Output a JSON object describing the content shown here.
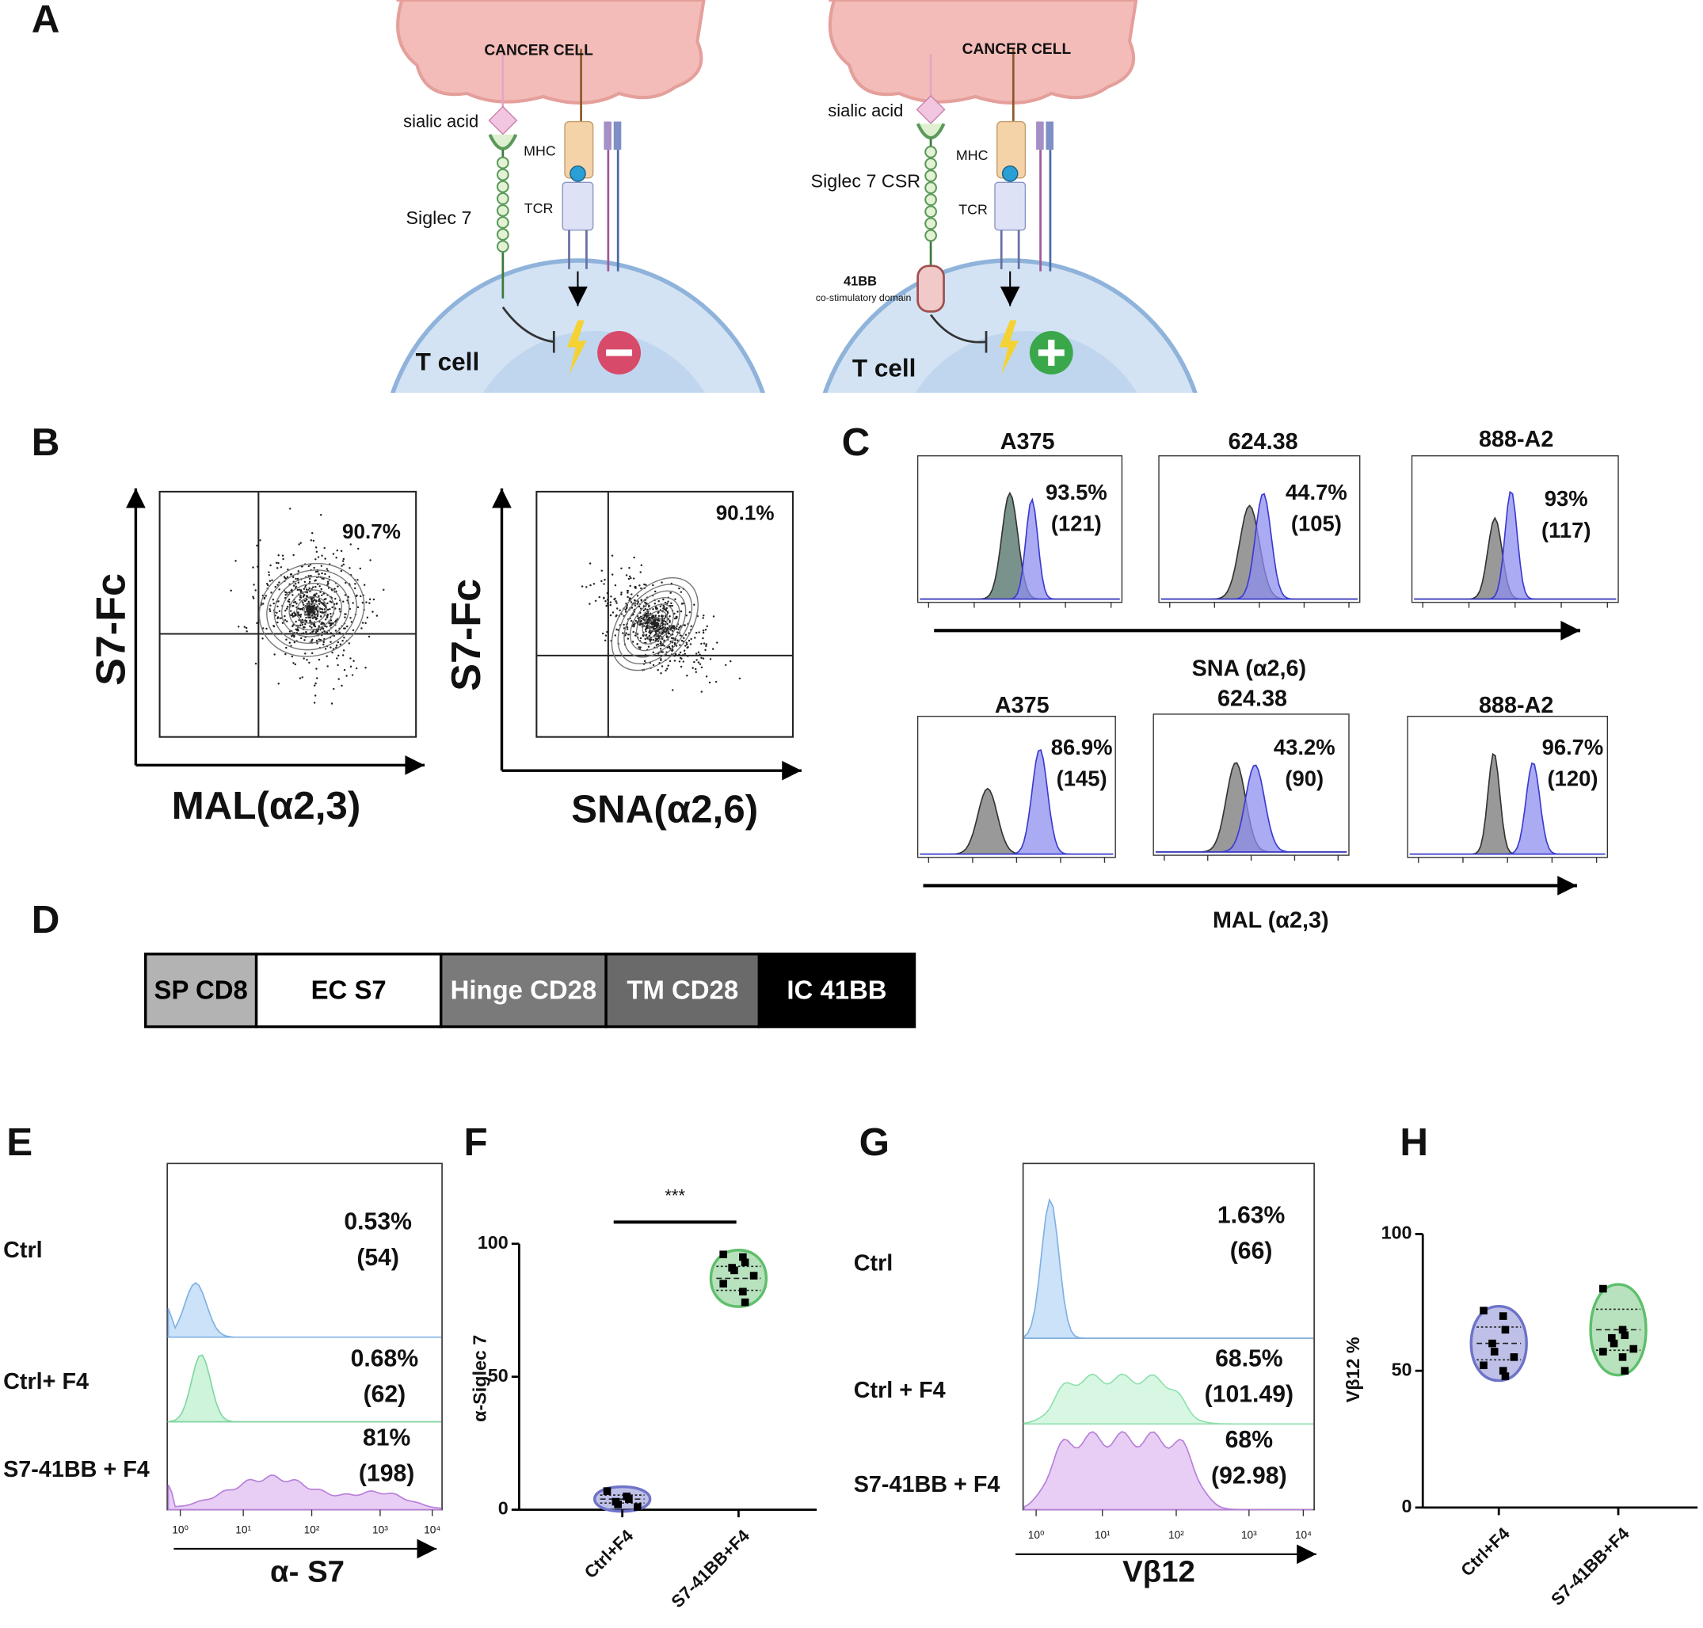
{
  "panel_a": {
    "label": "A",
    "left": {
      "cancer_cell": "CANCER CELL",
      "sialic_acid": "sialic acid",
      "mhc": "MHC",
      "tcr": "TCR",
      "receptor": "Siglec 7",
      "t_cell": "T cell"
    },
    "right": {
      "cancer_cell": "CANCER CELL",
      "sialic_acid": "sialic acid",
      "mhc": "MHC",
      "tcr": "TCR",
      "receptor": "Siglec 7 CSR",
      "costim": "41BB",
      "costim_note": "co-stimulatory domain",
      "t_cell": "T cell"
    }
  },
  "panel_b": {
    "label": "B",
    "plots": [
      {
        "y_label": "S7-Fc",
        "x_label": "MAL(α2,3)",
        "percent": "90.7%"
      },
      {
        "y_label": "S7-Fc",
        "x_label": "SNA(α2,6)",
        "percent": "90.1%"
      }
    ]
  },
  "panel_c": {
    "label": "C",
    "rows": [
      {
        "axis_label": "SNA (α2,6)",
        "plots": [
          {
            "cell_line": "A375",
            "percent": "93.5%",
            "mfi": "(121)"
          },
          {
            "cell_line": "624.38",
            "percent": "44.7%",
            "mfi": "(105)"
          },
          {
            "cell_line": "888-A2",
            "percent": "93%",
            "mfi": "(117)"
          }
        ]
      },
      {
        "axis_label": "MAL (α2,3)",
        "plots": [
          {
            "cell_line": "A375",
            "percent": "86.9%",
            "mfi": "(145)"
          },
          {
            "cell_line": "624.38",
            "percent": "43.2%",
            "mfi": "(90)"
          },
          {
            "cell_line": "888-A2",
            "percent": "96.7%",
            "mfi": "(120)"
          }
        ]
      }
    ]
  },
  "panel_d": {
    "label": "D",
    "segments": [
      "SP CD8",
      "EC S7",
      "Hinge CD28",
      "TM CD28",
      "IC 41BB"
    ]
  },
  "panel_e": {
    "label": "E",
    "x_label": "α- S7",
    "xticks": [
      "10⁰",
      "10¹",
      "10²",
      "10³",
      "10⁴"
    ],
    "rows": [
      {
        "name": "Ctrl",
        "percent": "0.53%",
        "mfi": "(54)"
      },
      {
        "name": "Ctrl+ F4",
        "percent": "0.68%",
        "mfi": "(62)"
      },
      {
        "name": "S7-41BB + F4",
        "percent": "81%",
        "mfi": "(198)"
      }
    ]
  },
  "panel_g": {
    "label": "G",
    "x_label": "Vβ12",
    "xticks": [
      "10⁰",
      "10¹",
      "10²",
      "10³",
      "10⁴"
    ],
    "rows": [
      {
        "name": "Ctrl",
        "percent": "1.63%",
        "mfi": "(66)"
      },
      {
        "name": "Ctrl + F4",
        "percent": "68.5%",
        "mfi": "(101.49)"
      },
      {
        "name": "S7-41BB + F4",
        "percent": "68%",
        "mfi": "(92.98)"
      }
    ]
  },
  "chart_data": [
    {
      "type": "violin",
      "panel_label": "F",
      "annotation": "***",
      "y_label": "α-Siglec 7",
      "categories": [
        "Ctrl+F4",
        "S7-41BB+F4"
      ],
      "colors": [
        "#6e73c9",
        "#5fbf6c"
      ],
      "values": [
        [
          7,
          5,
          4,
          3,
          2,
          1
        ],
        [
          96,
          95,
          93,
          91,
          90,
          88,
          85,
          82,
          78
        ]
      ],
      "ylim": [
        0,
        100
      ],
      "yticks": [
        0,
        50,
        100
      ]
    },
    {
      "type": "violin",
      "panel_label": "H",
      "y_label": "Vβ12 %",
      "categories": [
        "Ctrl+F4",
        "S7-41BB+F4"
      ],
      "colors": [
        "#6e73c9",
        "#5fbf6c"
      ],
      "values": [
        [
          72,
          70,
          65,
          60,
          57,
          55,
          52,
          50,
          48
        ],
        [
          80,
          65,
          63,
          62,
          60,
          58,
          57,
          55,
          50
        ]
      ],
      "ylim": [
        0,
        100
      ],
      "yticks": [
        0,
        50,
        100
      ]
    }
  ]
}
